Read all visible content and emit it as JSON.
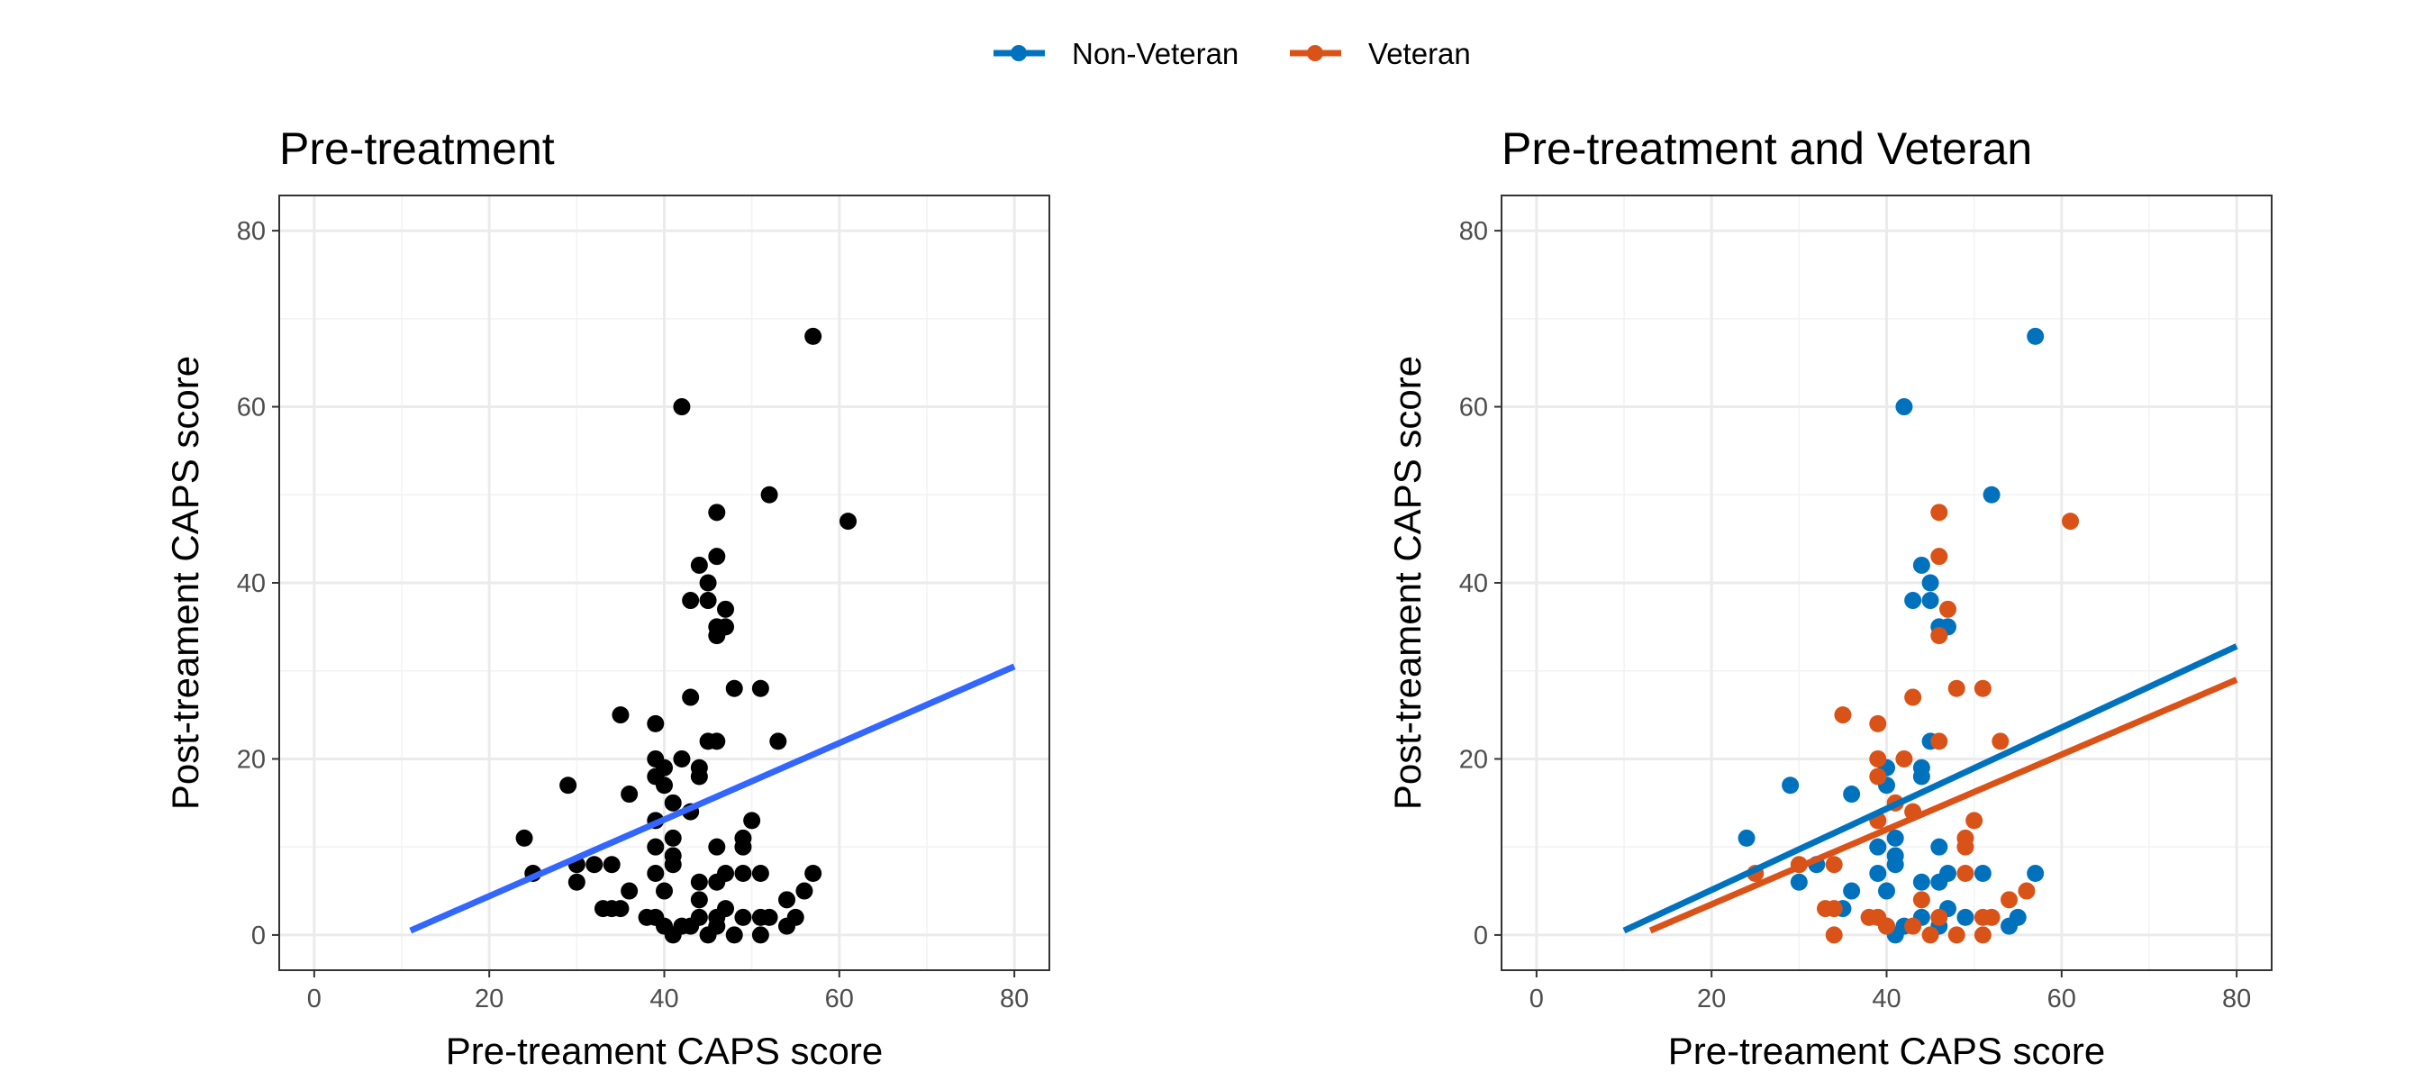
{
  "legend": {
    "items": [
      {
        "label": "Non-Veteran",
        "color": "#0072BD"
      },
      {
        "label": "Veteran",
        "color": "#D95319"
      }
    ]
  },
  "chart_data": [
    {
      "type": "scatter",
      "title": "Pre-treatment",
      "xlabel": "Pre-treament CAPS score",
      "ylabel": "Post-treament CAPS score",
      "xlim": [
        -4,
        84
      ],
      "ylim": [
        -4,
        84
      ],
      "xticks": [
        0,
        20,
        40,
        60,
        80
      ],
      "yticks": [
        0,
        20,
        40,
        60,
        80
      ],
      "grid": true,
      "point_color": "#000000",
      "series": [
        {
          "points": [
            [
              24,
              11
            ],
            [
              25,
              7
            ],
            [
              29,
              17
            ],
            [
              30,
              6
            ],
            [
              30,
              8
            ],
            [
              32,
              8
            ],
            [
              33,
              3
            ],
            [
              34,
              3
            ],
            [
              34,
              8
            ],
            [
              35,
              3
            ],
            [
              35,
              25
            ],
            [
              36,
              16
            ],
            [
              36,
              5
            ],
            [
              38,
              2
            ],
            [
              39,
              24
            ],
            [
              39,
              20
            ],
            [
              39,
              18
            ],
            [
              39,
              13
            ],
            [
              39,
              10
            ],
            [
              39,
              7
            ],
            [
              39,
              2
            ],
            [
              40,
              19
            ],
            [
              40,
              17
            ],
            [
              40,
              5
            ],
            [
              40,
              1
            ],
            [
              41,
              15
            ],
            [
              41,
              11
            ],
            [
              41,
              9
            ],
            [
              41,
              8
            ],
            [
              41,
              0
            ],
            [
              42,
              60
            ],
            [
              42,
              20
            ],
            [
              42,
              1
            ],
            [
              43,
              38
            ],
            [
              43,
              27
            ],
            [
              43,
              14
            ],
            [
              43,
              1
            ],
            [
              44,
              42
            ],
            [
              44,
              19
            ],
            [
              44,
              18
            ],
            [
              44,
              6
            ],
            [
              44,
              4
            ],
            [
              44,
              2
            ],
            [
              45,
              40
            ],
            [
              45,
              38
            ],
            [
              45,
              22
            ],
            [
              45,
              0
            ],
            [
              46,
              48
            ],
            [
              46,
              43
            ],
            [
              46,
              35
            ],
            [
              46,
              34
            ],
            [
              46,
              22
            ],
            [
              46,
              10
            ],
            [
              46,
              6
            ],
            [
              46,
              2
            ],
            [
              46,
              1
            ],
            [
              47,
              37
            ],
            [
              47,
              35
            ],
            [
              47,
              7
            ],
            [
              47,
              3
            ],
            [
              48,
              28
            ],
            [
              48,
              0
            ],
            [
              49,
              11
            ],
            [
              49,
              10
            ],
            [
              49,
              7
            ],
            [
              49,
              2
            ],
            [
              50,
              13
            ],
            [
              51,
              28
            ],
            [
              51,
              7
            ],
            [
              51,
              2
            ],
            [
              51,
              0
            ],
            [
              52,
              50
            ],
            [
              52,
              2
            ],
            [
              53,
              22
            ],
            [
              54,
              4
            ],
            [
              54,
              1
            ],
            [
              55,
              2
            ],
            [
              56,
              5
            ],
            [
              57,
              68
            ],
            [
              57,
              7
            ],
            [
              61,
              47
            ]
          ]
        }
      ],
      "fit_lines": [
        {
          "color": "#3366FF",
          "x": [
            11,
            80
          ],
          "y": [
            0.5,
            30.5
          ]
        }
      ]
    },
    {
      "type": "scatter",
      "title": "Pre-treatment and Veteran",
      "xlabel": "Pre-treament CAPS score",
      "ylabel": "Post-treament CAPS score",
      "xlim": [
        -4,
        84
      ],
      "ylim": [
        -4,
        84
      ],
      "xticks": [
        0,
        20,
        40,
        60,
        80
      ],
      "yticks": [
        0,
        20,
        40,
        60,
        80
      ],
      "grid": true,
      "series": [
        {
          "name": "Non-Veteran",
          "color": "#0072BD",
          "points": [
            [
              24,
              11
            ],
            [
              29,
              17
            ],
            [
              30,
              6
            ],
            [
              32,
              8
            ],
            [
              35,
              3
            ],
            [
              36,
              16
            ],
            [
              36,
              5
            ],
            [
              39,
              10
            ],
            [
              39,
              7
            ],
            [
              40,
              19
            ],
            [
              40,
              17
            ],
            [
              40,
              5
            ],
            [
              40,
              1
            ],
            [
              41,
              11
            ],
            [
              41,
              9
            ],
            [
              41,
              8
            ],
            [
              41,
              0
            ],
            [
              42,
              60
            ],
            [
              42,
              1
            ],
            [
              43,
              38
            ],
            [
              44,
              42
            ],
            [
              44,
              19
            ],
            [
              44,
              18
            ],
            [
              44,
              6
            ],
            [
              44,
              2
            ],
            [
              45,
              40
            ],
            [
              45,
              38
            ],
            [
              45,
              22
            ],
            [
              46,
              35
            ],
            [
              46,
              10
            ],
            [
              46,
              6
            ],
            [
              46,
              1
            ],
            [
              47,
              35
            ],
            [
              47,
              7
            ],
            [
              47,
              3
            ],
            [
              49,
              2
            ],
            [
              51,
              7
            ],
            [
              52,
              50
            ],
            [
              54,
              1
            ],
            [
              55,
              2
            ],
            [
              57,
              68
            ],
            [
              57,
              7
            ]
          ]
        },
        {
          "name": "Veteran",
          "color": "#D95319",
          "points": [
            [
              25,
              7
            ],
            [
              30,
              8
            ],
            [
              33,
              3
            ],
            [
              34,
              3
            ],
            [
              34,
              8
            ],
            [
              34,
              0
            ],
            [
              35,
              25
            ],
            [
              38,
              2
            ],
            [
              39,
              24
            ],
            [
              39,
              20
            ],
            [
              39,
              18
            ],
            [
              39,
              13
            ],
            [
              39,
              2
            ],
            [
              40,
              1
            ],
            [
              41,
              15
            ],
            [
              42,
              20
            ],
            [
              43,
              27
            ],
            [
              43,
              14
            ],
            [
              43,
              1
            ],
            [
              44,
              4
            ],
            [
              45,
              0
            ],
            [
              46,
              48
            ],
            [
              46,
              43
            ],
            [
              46,
              34
            ],
            [
              46,
              22
            ],
            [
              46,
              2
            ],
            [
              47,
              37
            ],
            [
              48,
              28
            ],
            [
              48,
              0
            ],
            [
              49,
              11
            ],
            [
              49,
              10
            ],
            [
              49,
              7
            ],
            [
              50,
              13
            ],
            [
              51,
              28
            ],
            [
              51,
              2
            ],
            [
              51,
              0
            ],
            [
              52,
              2
            ],
            [
              53,
              22
            ],
            [
              54,
              4
            ],
            [
              56,
              5
            ],
            [
              61,
              47
            ]
          ]
        }
      ],
      "fit_lines": [
        {
          "series": "Non-Veteran",
          "color": "#0072BD",
          "x": [
            10,
            80
          ],
          "y": [
            0.5,
            32.8
          ]
        },
        {
          "series": "Veteran",
          "color": "#D95319",
          "x": [
            13,
            80
          ],
          "y": [
            0.5,
            29
          ]
        }
      ]
    }
  ]
}
